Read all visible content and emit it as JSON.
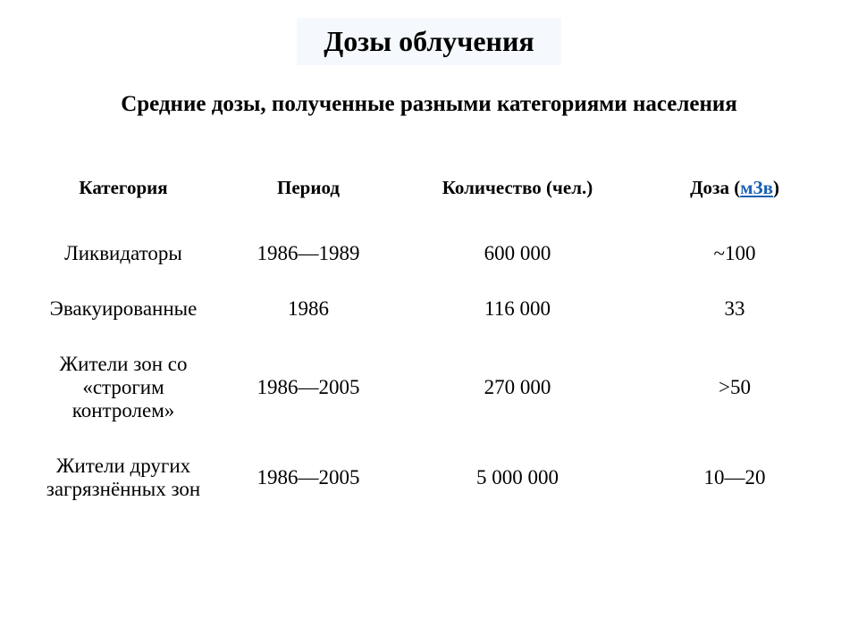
{
  "title": "Дозы облучения",
  "subtitle": "Средние дозы, полученные разными категориями населения",
  "columns": {
    "category": "Категория",
    "period": "Период",
    "count_prefix": "Количество (",
    "count_suffix": "чел.",
    "count_close": ")",
    "dose_prefix": "Доза (",
    "dose_link": "мЗв",
    "dose_close": ")"
  },
  "rows": [
    {
      "category": "Ликвидаторы",
      "period": "1986—1989",
      "count": "600 000",
      "dose": "~100"
    },
    {
      "category": "Эвакуированные",
      "period": "1986",
      "count": "116 000",
      "dose": "33"
    },
    {
      "category": "Жители зон со «строгим контролем»",
      "period": "1986—2005",
      "count": "270 000",
      "dose": ">50"
    },
    {
      "category": "Жители других загрязнённых зон",
      "period": "1986—2005",
      "count": "5 000 000",
      "dose": "10—20"
    }
  ],
  "style": {
    "title_bg": "#f5f9fd",
    "link_color": "#1a5fb4",
    "text_color": "#000000",
    "bg_color": "#ffffff"
  }
}
